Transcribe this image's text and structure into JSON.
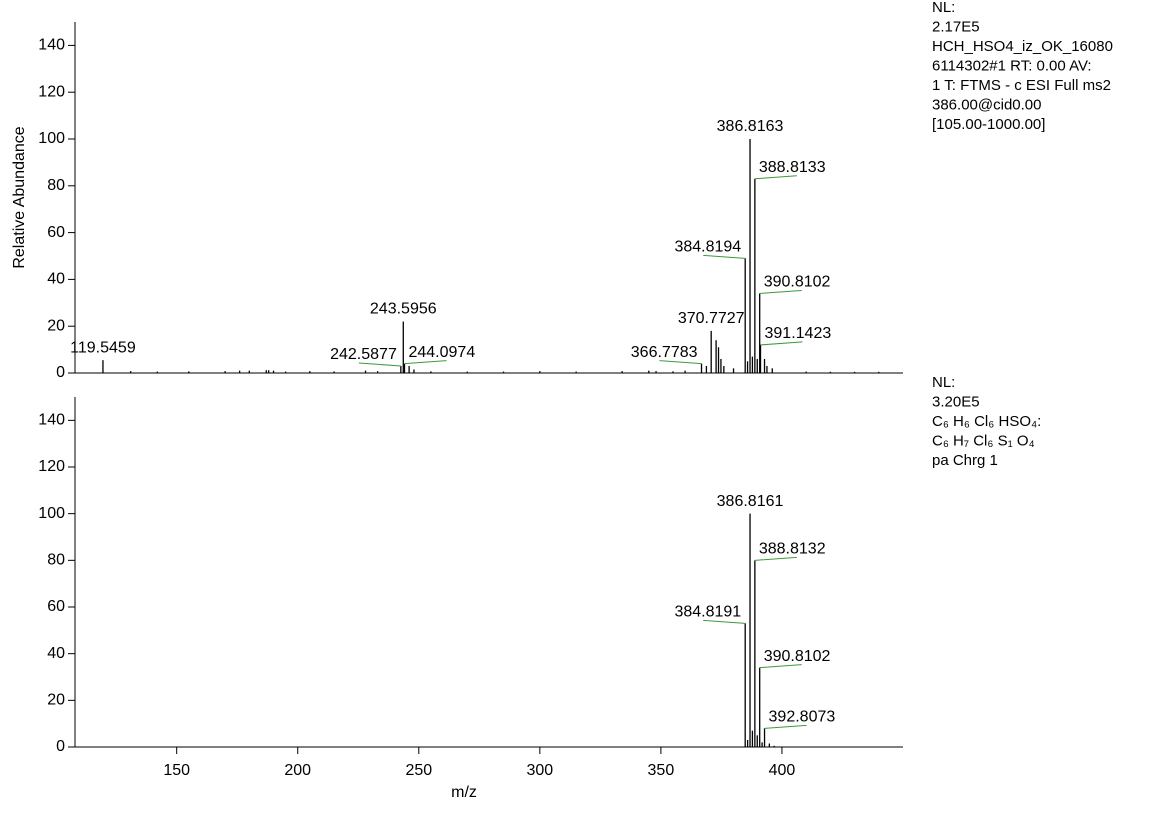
{
  "chart_data": [
    {
      "type": "bar",
      "ylabel": "Relative Abundance",
      "xlim": [
        108,
        450
      ],
      "ylim": [
        0,
        150
      ],
      "yticks": [
        0,
        20,
        40,
        60,
        80,
        100,
        120,
        140
      ],
      "color": "#000000",
      "leader_color": "#3c9a3c",
      "annotations": [
        "NL:",
        "2.17E5",
        "HCH_HSO4_iz_OK_16080",
        "6114302#1  RT: 0.00  AV:",
        "1 T: FTMS - c ESI Full ms2",
        "386.00@cid0.00",
        "[105.00-1000.00]"
      ],
      "x": [
        119.5459,
        131,
        142,
        155,
        170,
        176,
        180,
        187,
        188,
        190,
        195,
        205,
        215,
        228,
        233,
        242.5877,
        243.5956,
        244.0974,
        246,
        248,
        255,
        270,
        285,
        300,
        315,
        334,
        345,
        348,
        355,
        360,
        366.7783,
        368.8,
        370.7727,
        372.8,
        373.8,
        374.8,
        376,
        380,
        384.8194,
        385.8,
        386.8163,
        387.8,
        388.8133,
        389.8,
        390.8102,
        391.1423,
        392.8,
        393.8,
        396,
        410,
        420,
        430,
        440
      ],
      "values": [
        5.5,
        0.8,
        0.6,
        0.7,
        0.8,
        1,
        1,
        1.2,
        1.2,
        1,
        0.6,
        0.8,
        0.7,
        1,
        0.8,
        3,
        22,
        4,
        3,
        1.5,
        0.7,
        0.6,
        0.6,
        0.8,
        0.6,
        0.8,
        1,
        0.8,
        0.7,
        1,
        4,
        3,
        18,
        14,
        11,
        6,
        3,
        2,
        49,
        5,
        100,
        7,
        83,
        6,
        34,
        12,
        6,
        3,
        2,
        0.6,
        0.5,
        0.5,
        0.5
      ],
      "labels": [
        "119.5459",
        null,
        null,
        null,
        null,
        null,
        null,
        null,
        null,
        null,
        null,
        null,
        null,
        null,
        null,
        "242.5877",
        "243.5956",
        "244.0974",
        null,
        null,
        null,
        null,
        null,
        null,
        null,
        null,
        null,
        null,
        null,
        null,
        "366.7783",
        null,
        "370.7727",
        null,
        null,
        null,
        null,
        null,
        "384.8194",
        null,
        "386.8163",
        null,
        "388.8133",
        null,
        "390.8102",
        "391.1423",
        null,
        null,
        null,
        null,
        null,
        null,
        null
      ]
    },
    {
      "type": "bar",
      "xlabel": "m/z",
      "xlim": [
        108,
        450
      ],
      "ylim": [
        0,
        150
      ],
      "yticks": [
        0,
        20,
        40,
        60,
        80,
        100,
        120,
        140
      ],
      "xticks": [
        150,
        200,
        250,
        300,
        350,
        400
      ],
      "color": "#000000",
      "leader_color": "#3c9a3c",
      "annotations": [
        "NL:",
        "3.20E5",
        "C₆ H₆ Cl₆ HSO₄:",
        "C₆ H₇ Cl₆ S₁ O₄",
        "pa Chrg 1"
      ],
      "x": [
        384.8191,
        385.82,
        386.8161,
        387.8,
        388.8132,
        389.8,
        390.8102,
        391.8,
        392.8073,
        394.8,
        396.8
      ],
      "values": [
        53,
        3,
        100,
        7,
        80,
        5,
        34,
        2,
        8,
        1.5,
        0.5
      ],
      "labels": [
        "384.8191",
        null,
        "386.8161",
        null,
        "388.8132",
        null,
        "390.8102",
        null,
        "392.8073",
        null,
        null
      ]
    }
  ]
}
